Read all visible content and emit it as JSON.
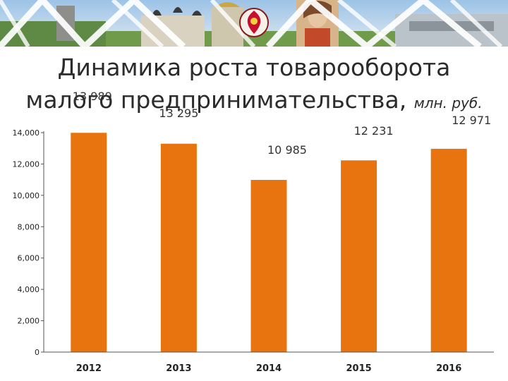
{
  "header": {
    "title_line1": "Динамика роста товарооборота",
    "title_line2": "малого предпринимательства,",
    "title_unit": "млн. руб."
  },
  "colors": {
    "bar": "#e8740f",
    "axis": "#555555",
    "accent": "#c8102e"
  },
  "chart_data": {
    "type": "bar",
    "title": "Динамика роста товарооборота малого предпринимательства, млн. руб.",
    "categories": [
      "2012",
      "2013",
      "2014",
      "2015",
      "2016"
    ],
    "values": [
      13989,
      13295,
      10985,
      12231,
      12971
    ],
    "value_labels": [
      "13 989",
      "13 295",
      "10 985",
      "12 231",
      "12 971"
    ],
    "yticks": [
      0,
      2000,
      4000,
      6000,
      8000,
      10000,
      12000,
      14000
    ],
    "ytick_labels": [
      "0",
      "2,000",
      "4,000",
      "6,000",
      "8,000",
      "10,000",
      "12,000",
      "14,000"
    ],
    "ylim": [
      0,
      14000
    ],
    "grid": false,
    "legend": "none"
  }
}
